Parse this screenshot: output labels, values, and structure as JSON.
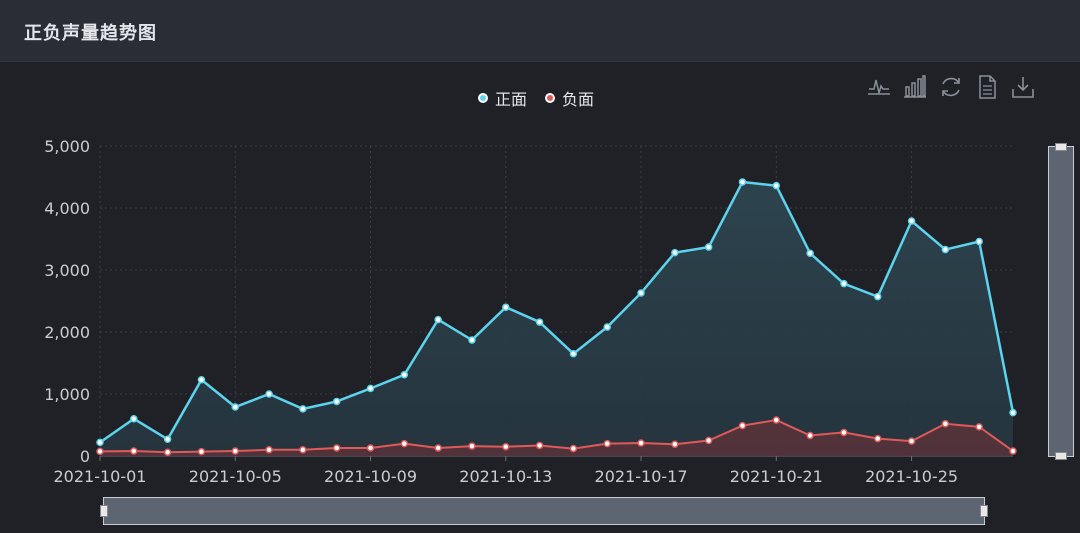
{
  "panel": {
    "title": "正负声量趋势图"
  },
  "legend": [
    {
      "label": "正面",
      "color": "#5dd4ee"
    },
    {
      "label": "负面",
      "color": "#e05a5a"
    }
  ],
  "toolbox": [
    "line-chart-icon",
    "bar-chart-icon",
    "refresh-icon",
    "data-view-icon",
    "download-icon"
  ],
  "chart_data": {
    "type": "area",
    "x": [
      "2021-10-01",
      "2021-10-02",
      "2021-10-03",
      "2021-10-04",
      "2021-10-05",
      "2021-10-06",
      "2021-10-07",
      "2021-10-08",
      "2021-10-09",
      "2021-10-10",
      "2021-10-11",
      "2021-10-12",
      "2021-10-13",
      "2021-10-14",
      "2021-10-15",
      "2021-10-16",
      "2021-10-17",
      "2021-10-18",
      "2021-10-19",
      "2021-10-20",
      "2021-10-21",
      "2021-10-22",
      "2021-10-23",
      "2021-10-24",
      "2021-10-25",
      "2021-10-26",
      "2021-10-27",
      "2021-10-28"
    ],
    "x_tick_labels": [
      "2021-10-01",
      "2021-10-05",
      "2021-10-09",
      "2021-10-13",
      "2021-10-17",
      "2021-10-21",
      "2021-10-25"
    ],
    "y_tick_labels": [
      "0",
      "1,000",
      "2,000",
      "3,000",
      "4,000",
      "5,000"
    ],
    "ylim": [
      0,
      5000
    ],
    "grid": true,
    "series": [
      {
        "name": "正面",
        "color": "#5dd4ee",
        "values": [
          220,
          600,
          270,
          1230,
          790,
          1000,
          760,
          880,
          1090,
          1310,
          2200,
          1870,
          2400,
          2160,
          1650,
          2080,
          2630,
          3280,
          3370,
          4420,
          4360,
          3270,
          2780,
          2570,
          3790,
          3330,
          3460,
          700
        ]
      },
      {
        "name": "负面",
        "color": "#e05a5a",
        "values": [
          75,
          80,
          60,
          70,
          80,
          100,
          100,
          130,
          130,
          200,
          130,
          160,
          150,
          170,
          120,
          200,
          210,
          190,
          250,
          490,
          580,
          330,
          380,
          280,
          240,
          520,
          470,
          80
        ]
      }
    ]
  }
}
